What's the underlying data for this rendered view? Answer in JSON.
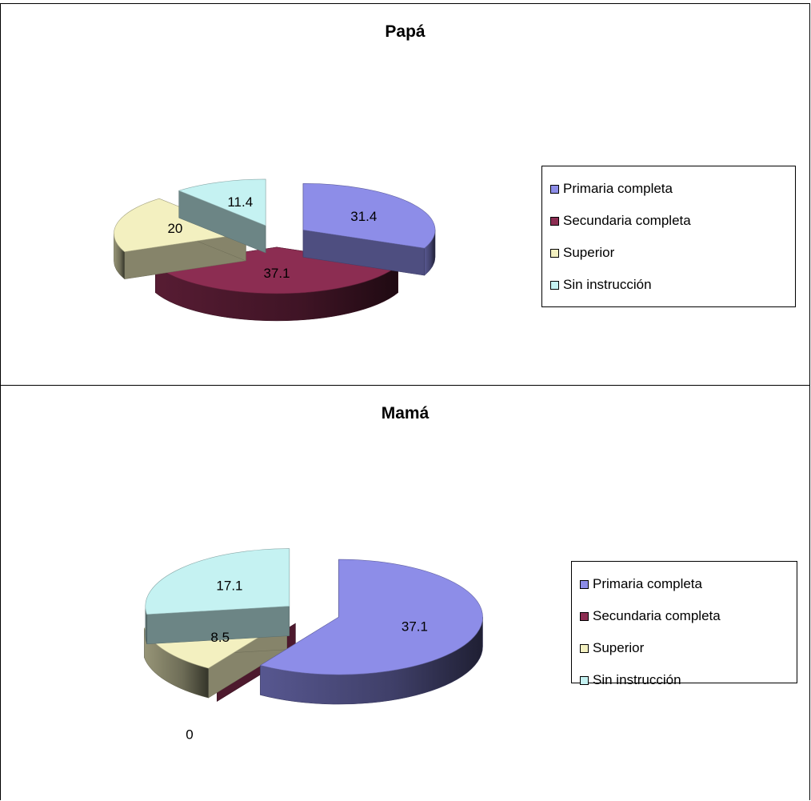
{
  "chart_data": [
    {
      "type": "pie",
      "title": "Papá",
      "categories": [
        "Primaria completa",
        "Secundaria completa",
        "Superior",
        "Sin instrucción"
      ],
      "values": [
        31.4,
        37.1,
        20,
        11.4
      ],
      "value_labels": [
        "31.4",
        "37.1",
        "20",
        "11.4"
      ],
      "colors": [
        "#8d8de8",
        "#8c2d52",
        "#f3f0c0",
        "#c5f2f2"
      ],
      "style": "3d-exploded",
      "legend_position": "right"
    },
    {
      "type": "pie",
      "title": "Mamá",
      "categories": [
        "Primaria completa",
        "Secundaria completa",
        "Superior",
        "Sin instrucción"
      ],
      "values": [
        37.1,
        0,
        8.5,
        17.1
      ],
      "value_labels": [
        "37.1",
        "0",
        "8.5",
        "17.1"
      ],
      "colors": [
        "#8d8de8",
        "#8c2d52",
        "#f3f0c0",
        "#c5f2f2"
      ],
      "style": "3d-exploded",
      "legend_position": "right"
    }
  ]
}
